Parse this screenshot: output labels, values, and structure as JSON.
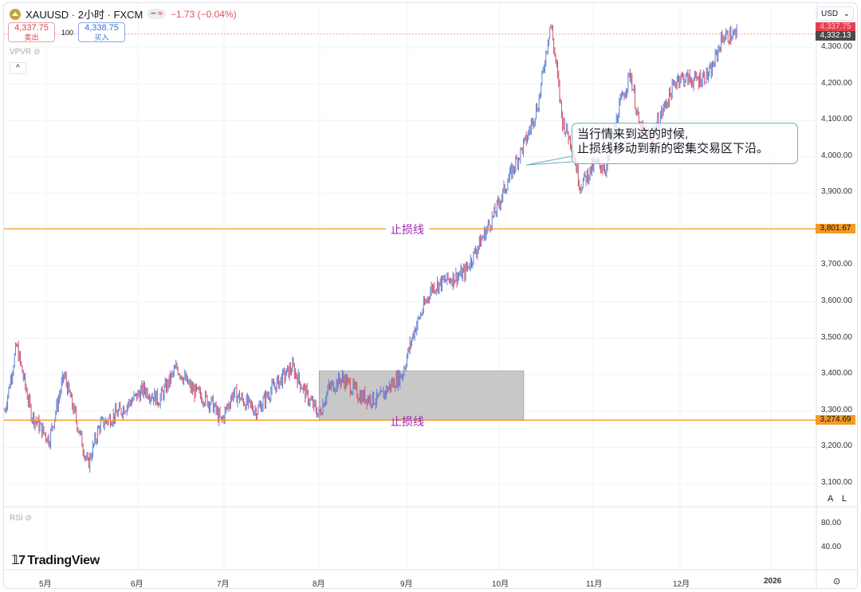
{
  "header": {
    "symbol": "XAUUSD · 2小时 · FXCM",
    "change": "−1.73 (−0.04%)",
    "pill_a": "━",
    "pill_b": "≈"
  },
  "trade": {
    "sell_price": "4,337.75",
    "sell_label": "卖出",
    "qty": "100",
    "buy_price": "4,338.75",
    "buy_label": "买入"
  },
  "indicators": {
    "vpvr": "VPVR",
    "rsi": "RSI"
  },
  "currency": "USD",
  "price_axis": [
    "4,300.00",
    "4,200.00",
    "4,100.00",
    "4,000.00",
    "3,900.00",
    "3,700.00",
    "3,600.00",
    "3,500.00",
    "3,400.00",
    "3,300.00",
    "3,200.00",
    "3,100.00"
  ],
  "price_axis_values": [
    4300,
    4200,
    4100,
    4000,
    3900,
    3700,
    3600,
    3500,
    3400,
    3300,
    3200,
    3100
  ],
  "tags": {
    "ask": "4,337.75",
    "last": "4,332.13",
    "stop_high": "3,801.67",
    "stop_low": "3,274.69"
  },
  "rsi_axis": [
    "80.00",
    "40.00"
  ],
  "time_axis": [
    "5月",
    "6月",
    "7月",
    "8月",
    "9月",
    "10月",
    "11月",
    "12月",
    "2026"
  ],
  "annotations": {
    "stop_label": "止损线",
    "callout": "当行情来到这的时候,\n止损线移动到新的密集交易区下沿。"
  },
  "brand": "TradingView",
  "scale_buttons": {
    "auto": "A",
    "log": "L"
  },
  "colors": {
    "up": "#5b7fd6",
    "down": "#d0506a",
    "stop_line": "#f59a23",
    "stop_text": "#9c27b0",
    "ask": "#e5404e",
    "last": "#4a4a4a"
  },
  "chart_data": {
    "type": "candlestick",
    "symbol": "XAUUSD",
    "interval": "2h",
    "x_unit": "days since 2025-05-01",
    "ylim": [
      3050,
      4420
    ],
    "stop_levels": [
      3801.67,
      3274.69
    ],
    "zone": {
      "from_day": 92,
      "to_day": 161,
      "low": 3274.69,
      "high": 3410
    },
    "path": [
      [
        -14,
        3300
      ],
      [
        -10,
        3480
      ],
      [
        -5,
        3290
      ],
      [
        1,
        3220
      ],
      [
        6,
        3400
      ],
      [
        10,
        3280
      ],
      [
        14,
        3150
      ],
      [
        18,
        3260
      ],
      [
        25,
        3300
      ],
      [
        33,
        3360
      ],
      [
        38,
        3330
      ],
      [
        44,
        3420
      ],
      [
        49,
        3360
      ],
      [
        56,
        3320
      ],
      [
        59,
        3270
      ],
      [
        63,
        3350
      ],
      [
        71,
        3300
      ],
      [
        76,
        3360
      ],
      [
        83,
        3420
      ],
      [
        88,
        3340
      ],
      [
        92,
        3290
      ],
      [
        95,
        3360
      ],
      [
        100,
        3390
      ],
      [
        106,
        3340
      ],
      [
        112,
        3330
      ],
      [
        116,
        3370
      ],
      [
        120,
        3400
      ],
      [
        124,
        3520
      ],
      [
        130,
        3640
      ],
      [
        135,
        3660
      ],
      [
        141,
        3680
      ],
      [
        146,
        3760
      ],
      [
        151,
        3840
      ],
      [
        157,
        3960
      ],
      [
        162,
        4050
      ],
      [
        166,
        4150
      ],
      [
        170,
        4370
      ],
      [
        172,
        4250
      ],
      [
        174,
        4100
      ],
      [
        177,
        4040
      ],
      [
        180,
        3920
      ],
      [
        185,
        3980
      ],
      [
        189,
        3970
      ],
      [
        193,
        4130
      ],
      [
        197,
        4230
      ],
      [
        200,
        4080
      ],
      [
        204,
        4050
      ],
      [
        208,
        4130
      ],
      [
        213,
        4220
      ],
      [
        219,
        4210
      ],
      [
        224,
        4230
      ],
      [
        228,
        4330
      ],
      [
        233,
        4335
      ]
    ]
  }
}
